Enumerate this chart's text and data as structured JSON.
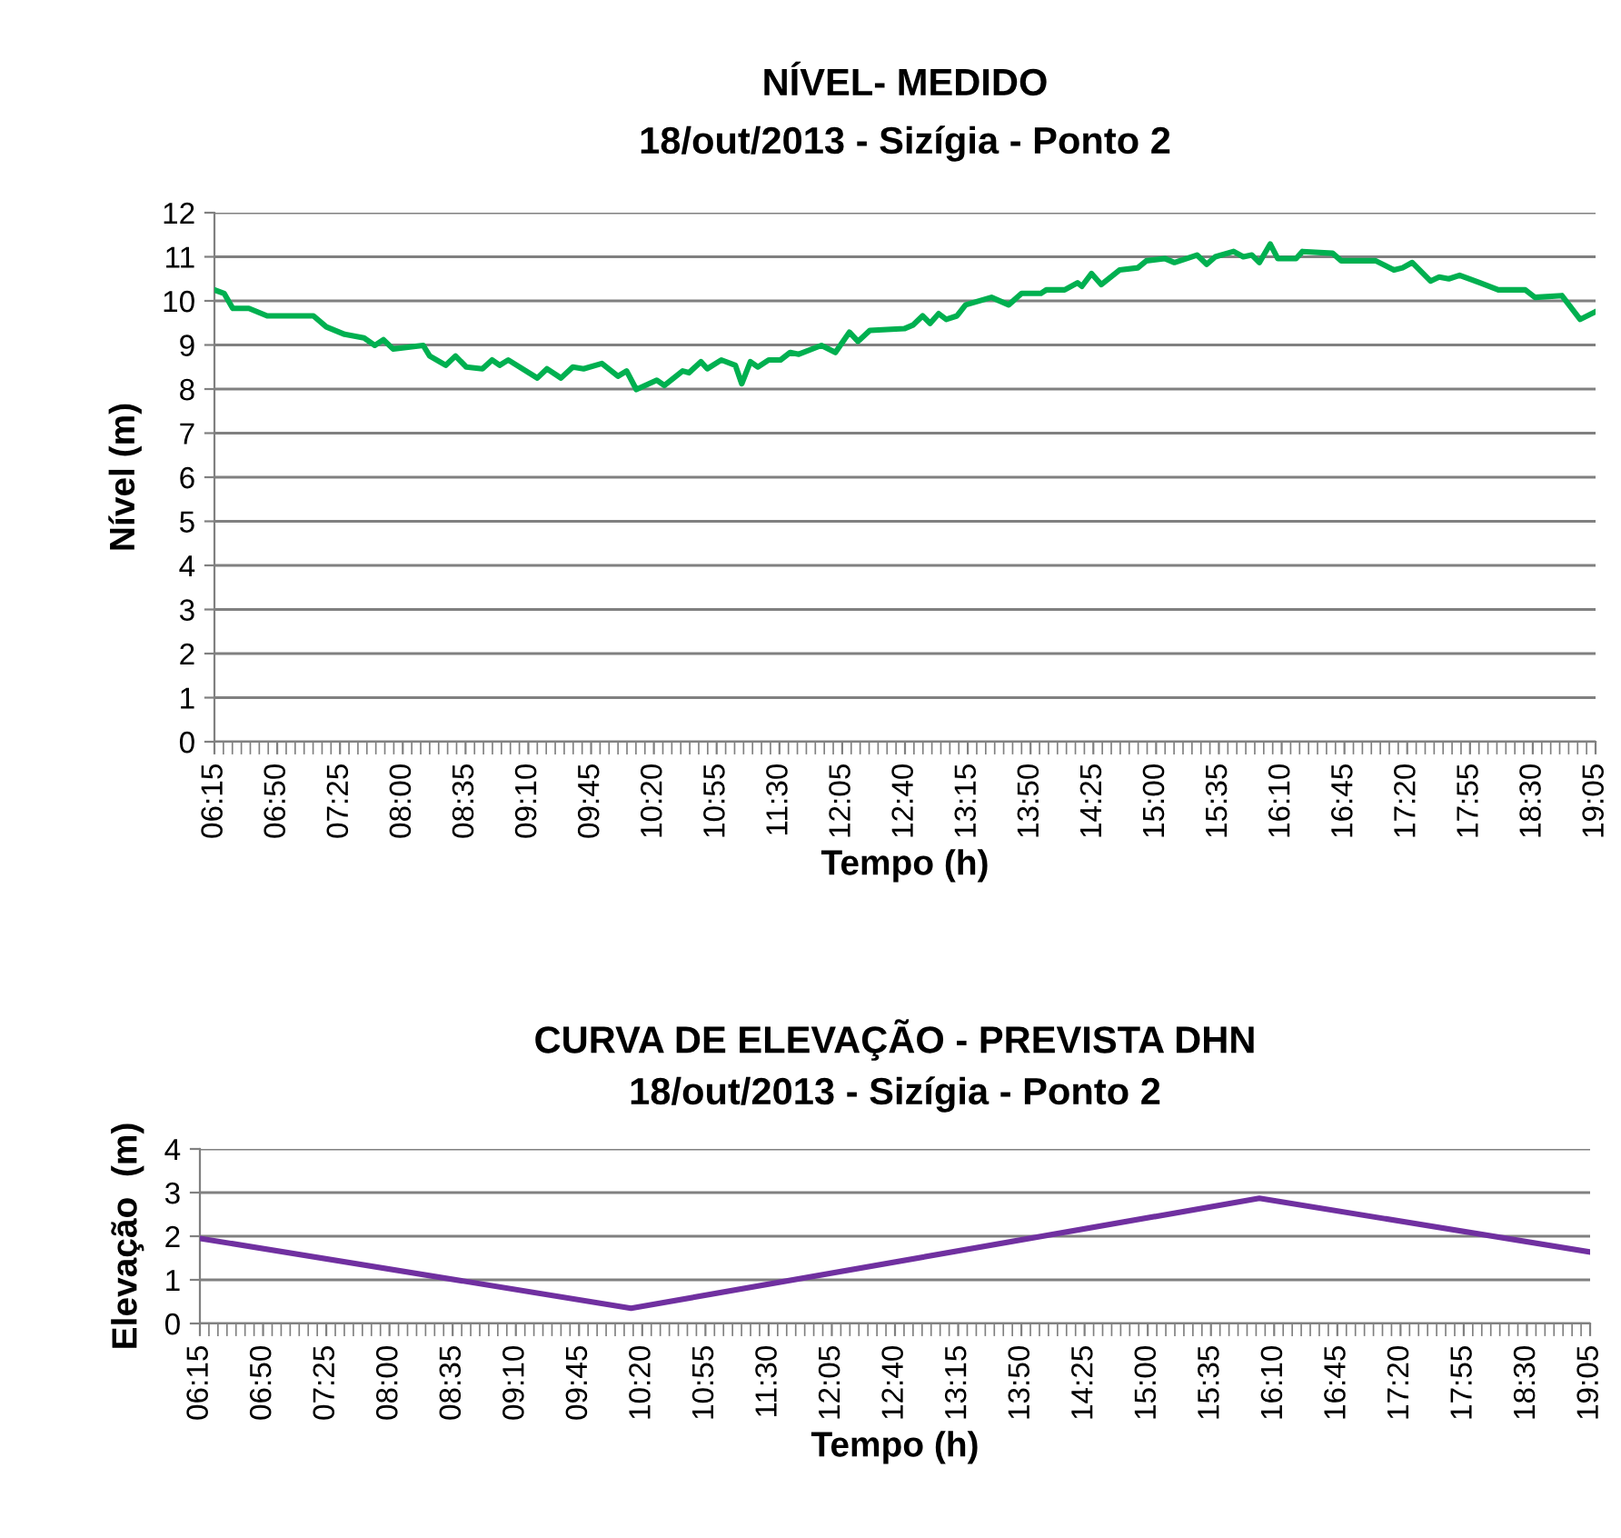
{
  "chart_data": [
    {
      "type": "line",
      "title": "NÍVEL- MEDIDO",
      "subtitle": "18/out/2013 - Sizígia - Ponto 2",
      "xlabel": "Tempo (h)",
      "ylabel": "Nível (m)",
      "series": [
        {
          "color": "#00b050",
          "x": [
            6.25,
            6.34,
            6.42,
            6.57,
            6.74,
            7.17,
            7.29,
            7.46,
            7.64,
            7.74,
            7.82,
            7.91,
            8.19,
            8.25,
            8.4,
            8.49,
            8.59,
            8.74,
            8.83,
            8.9,
            8.98,
            9.25,
            9.34,
            9.47,
            9.58,
            9.68,
            9.85,
            10.0,
            10.08,
            10.17,
            10.36,
            10.43,
            10.6,
            10.66,
            10.77,
            10.83,
            10.96,
            11.09,
            11.15,
            11.23,
            11.3,
            11.4,
            11.51,
            11.6,
            11.68,
            11.89,
            12.02,
            12.15,
            12.23,
            12.34,
            12.66,
            12.74,
            12.83,
            12.9,
            12.98,
            13.05,
            13.15,
            13.23,
            13.47,
            13.63,
            13.75,
            13.93,
            13.98,
            14.15,
            14.27,
            14.31,
            14.4,
            14.49,
            14.66,
            14.83,
            14.91,
            15.08,
            15.17,
            15.38,
            15.47,
            15.55,
            15.72,
            15.81,
            15.89,
            15.96,
            16.06,
            16.13,
            16.3,
            16.36,
            16.64,
            16.72,
            17.04,
            17.21,
            17.29,
            17.38,
            17.55,
            17.63,
            17.72,
            17.82,
            18.01,
            18.18,
            18.43,
            18.52,
            18.77,
            18.94,
            19.08
          ],
          "values": [
            10.25,
            10.17,
            9.83,
            9.83,
            9.66,
            9.66,
            9.41,
            9.24,
            9.16,
            8.99,
            9.12,
            8.91,
            8.99,
            8.75,
            8.54,
            8.75,
            8.5,
            8.46,
            8.66,
            8.54,
            8.66,
            8.25,
            8.46,
            8.25,
            8.5,
            8.46,
            8.58,
            8.29,
            8.41,
            7.99,
            8.2,
            8.08,
            8.41,
            8.37,
            8.62,
            8.46,
            8.66,
            8.54,
            8.12,
            8.62,
            8.5,
            8.66,
            8.66,
            8.83,
            8.79,
            8.99,
            8.83,
            9.29,
            9.08,
            9.33,
            9.37,
            9.45,
            9.66,
            9.49,
            9.71,
            9.58,
            9.66,
            9.91,
            10.08,
            9.91,
            10.17,
            10.17,
            10.25,
            10.25,
            10.41,
            10.33,
            10.62,
            10.37,
            10.7,
            10.75,
            10.91,
            10.96,
            10.87,
            11.04,
            10.83,
            11.0,
            11.12,
            11.0,
            11.04,
            10.87,
            11.29,
            10.96,
            10.96,
            11.12,
            11.08,
            10.91,
            10.91,
            10.7,
            10.75,
            10.87,
            10.45,
            10.54,
            10.5,
            10.58,
            10.41,
            10.25,
            10.25,
            10.08,
            10.12,
            9.58,
            9.75
          ]
        }
      ],
      "xlim": [
        6.25,
        19.0833
      ],
      "xticks": [
        {
          "value": 6.25,
          "label": "06:15"
        },
        {
          "value": 6.8333,
          "label": "06:50"
        },
        {
          "value": 7.4167,
          "label": "07:25"
        },
        {
          "value": 8.0,
          "label": "08:00"
        },
        {
          "value": 8.5833,
          "label": "08:35"
        },
        {
          "value": 9.1667,
          "label": "09:10"
        },
        {
          "value": 9.75,
          "label": "09:45"
        },
        {
          "value": 10.3333,
          "label": "10:20"
        },
        {
          "value": 10.9167,
          "label": "10:55"
        },
        {
          "value": 11.5,
          "label": "11:30"
        },
        {
          "value": 12.0833,
          "label": "12:05"
        },
        {
          "value": 12.6667,
          "label": "12:40"
        },
        {
          "value": 13.25,
          "label": "13:15"
        },
        {
          "value": 13.8333,
          "label": "13:50"
        },
        {
          "value": 14.4167,
          "label": "14:25"
        },
        {
          "value": 15.0,
          "label": "15:00"
        },
        {
          "value": 15.5833,
          "label": "15:35"
        },
        {
          "value": 16.1667,
          "label": "16:10"
        },
        {
          "value": 16.75,
          "label": "16:45"
        },
        {
          "value": 17.3333,
          "label": "17:20"
        },
        {
          "value": 17.9167,
          "label": "17:55"
        },
        {
          "value": 18.5,
          "label": "18:30"
        },
        {
          "value": 19.0833,
          "label": "19:05"
        }
      ],
      "ylim": [
        0,
        12
      ],
      "yticks": [
        0,
        1,
        2,
        3,
        4,
        5,
        6,
        7,
        8,
        9,
        10,
        11,
        12
      ],
      "grid": "y",
      "marker": "none",
      "line_style": "solid"
    },
    {
      "type": "line",
      "title": "CURVA DE ELEVAÇÃO - PREVISTA DHN",
      "subtitle": "18/out/2013 - Sizígia - Ponto 2",
      "xlabel": "Tempo (h)",
      "ylabel": "Elevação  (m)",
      "series": [
        {
          "color": "#7030a0",
          "x": [
            6.25,
            10.23,
            16.03,
            19.08
          ],
          "values": [
            1.95,
            0.35,
            2.87,
            1.64
          ]
        }
      ],
      "xlim": [
        6.25,
        19.0833
      ],
      "xticks": [
        {
          "value": 6.25,
          "label": "06:15"
        },
        {
          "value": 6.8333,
          "label": "06:50"
        },
        {
          "value": 7.4167,
          "label": "07:25"
        },
        {
          "value": 8.0,
          "label": "08:00"
        },
        {
          "value": 8.5833,
          "label": "08:35"
        },
        {
          "value": 9.1667,
          "label": "09:10"
        },
        {
          "value": 9.75,
          "label": "09:45"
        },
        {
          "value": 10.3333,
          "label": "10:20"
        },
        {
          "value": 10.9167,
          "label": "10:55"
        },
        {
          "value": 11.5,
          "label": "11:30"
        },
        {
          "value": 12.0833,
          "label": "12:05"
        },
        {
          "value": 12.6667,
          "label": "12:40"
        },
        {
          "value": 13.25,
          "label": "13:15"
        },
        {
          "value": 13.8333,
          "label": "13:50"
        },
        {
          "value": 14.4167,
          "label": "14:25"
        },
        {
          "value": 15.0,
          "label": "15:00"
        },
        {
          "value": 15.5833,
          "label": "15:35"
        },
        {
          "value": 16.1667,
          "label": "16:10"
        },
        {
          "value": 16.75,
          "label": "16:45"
        },
        {
          "value": 17.3333,
          "label": "17:20"
        },
        {
          "value": 17.9167,
          "label": "17:55"
        },
        {
          "value": 18.5,
          "label": "18:30"
        },
        {
          "value": 19.0833,
          "label": "19:05"
        }
      ],
      "ylim": [
        0,
        4
      ],
      "yticks": [
        0,
        1,
        2,
        3,
        4
      ],
      "grid": "y",
      "marker": "none",
      "line_style": "solid"
    }
  ]
}
